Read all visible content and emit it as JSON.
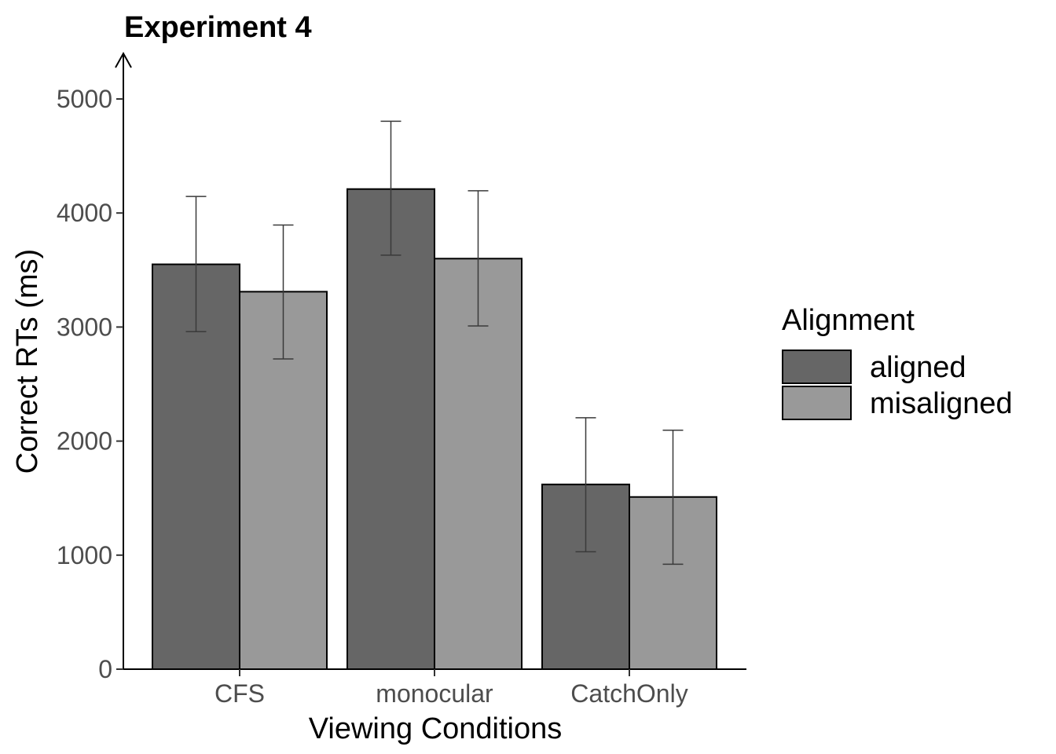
{
  "chart_data": {
    "type": "bar",
    "title": "Experiment 4",
    "xlabel": "Viewing Conditions",
    "ylabel": "Correct RTs (ms)",
    "categories": [
      "CFS",
      "monocular",
      "CatchOnly"
    ],
    "ylim": [
      0,
      5000
    ],
    "yticks": [
      0,
      1000,
      2000,
      3000,
      4000,
      5000
    ],
    "yaxis_arrow": true,
    "grid": false,
    "legend": {
      "title": "Alignment",
      "position": "right"
    },
    "series": [
      {
        "name": "aligned",
        "color": "#666666",
        "values": [
          3550,
          4210,
          1620
        ],
        "error_low": [
          2960,
          3630,
          1030
        ],
        "error_high": [
          4145,
          4805,
          2205
        ]
      },
      {
        "name": "misaligned",
        "color": "#999999",
        "values": [
          3310,
          3600,
          1510
        ],
        "error_low": [
          2720,
          3010,
          920
        ],
        "error_high": [
          3895,
          4195,
          2095
        ]
      }
    ]
  }
}
